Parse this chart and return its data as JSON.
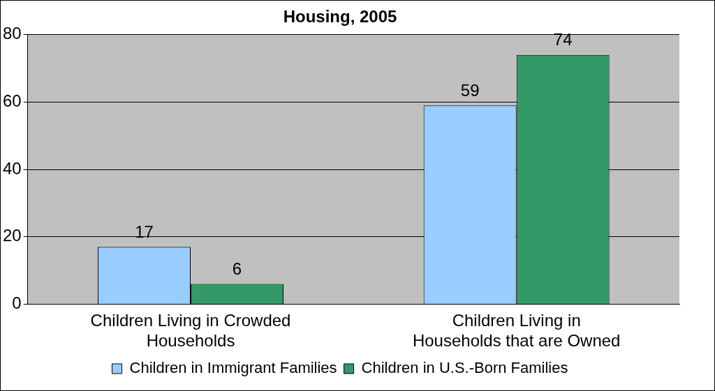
{
  "chart_data": {
    "type": "bar",
    "title": "Housing, 2005",
    "categories": [
      "Children Living in Crowded Households",
      "Children Living in Households that are Owned"
    ],
    "series": [
      {
        "name": "Children in Immigrant Families",
        "color": "#99ccff",
        "values": [
          17,
          59
        ]
      },
      {
        "name": "Children in U.S.-Born Families",
        "color": "#339966",
        "values": [
          6,
          74
        ]
      }
    ],
    "ylim": [
      0,
      80
    ],
    "yticks": [
      0,
      20,
      40,
      60,
      80
    ],
    "grid": "y",
    "legend": "bottom",
    "data_labels": true
  }
}
